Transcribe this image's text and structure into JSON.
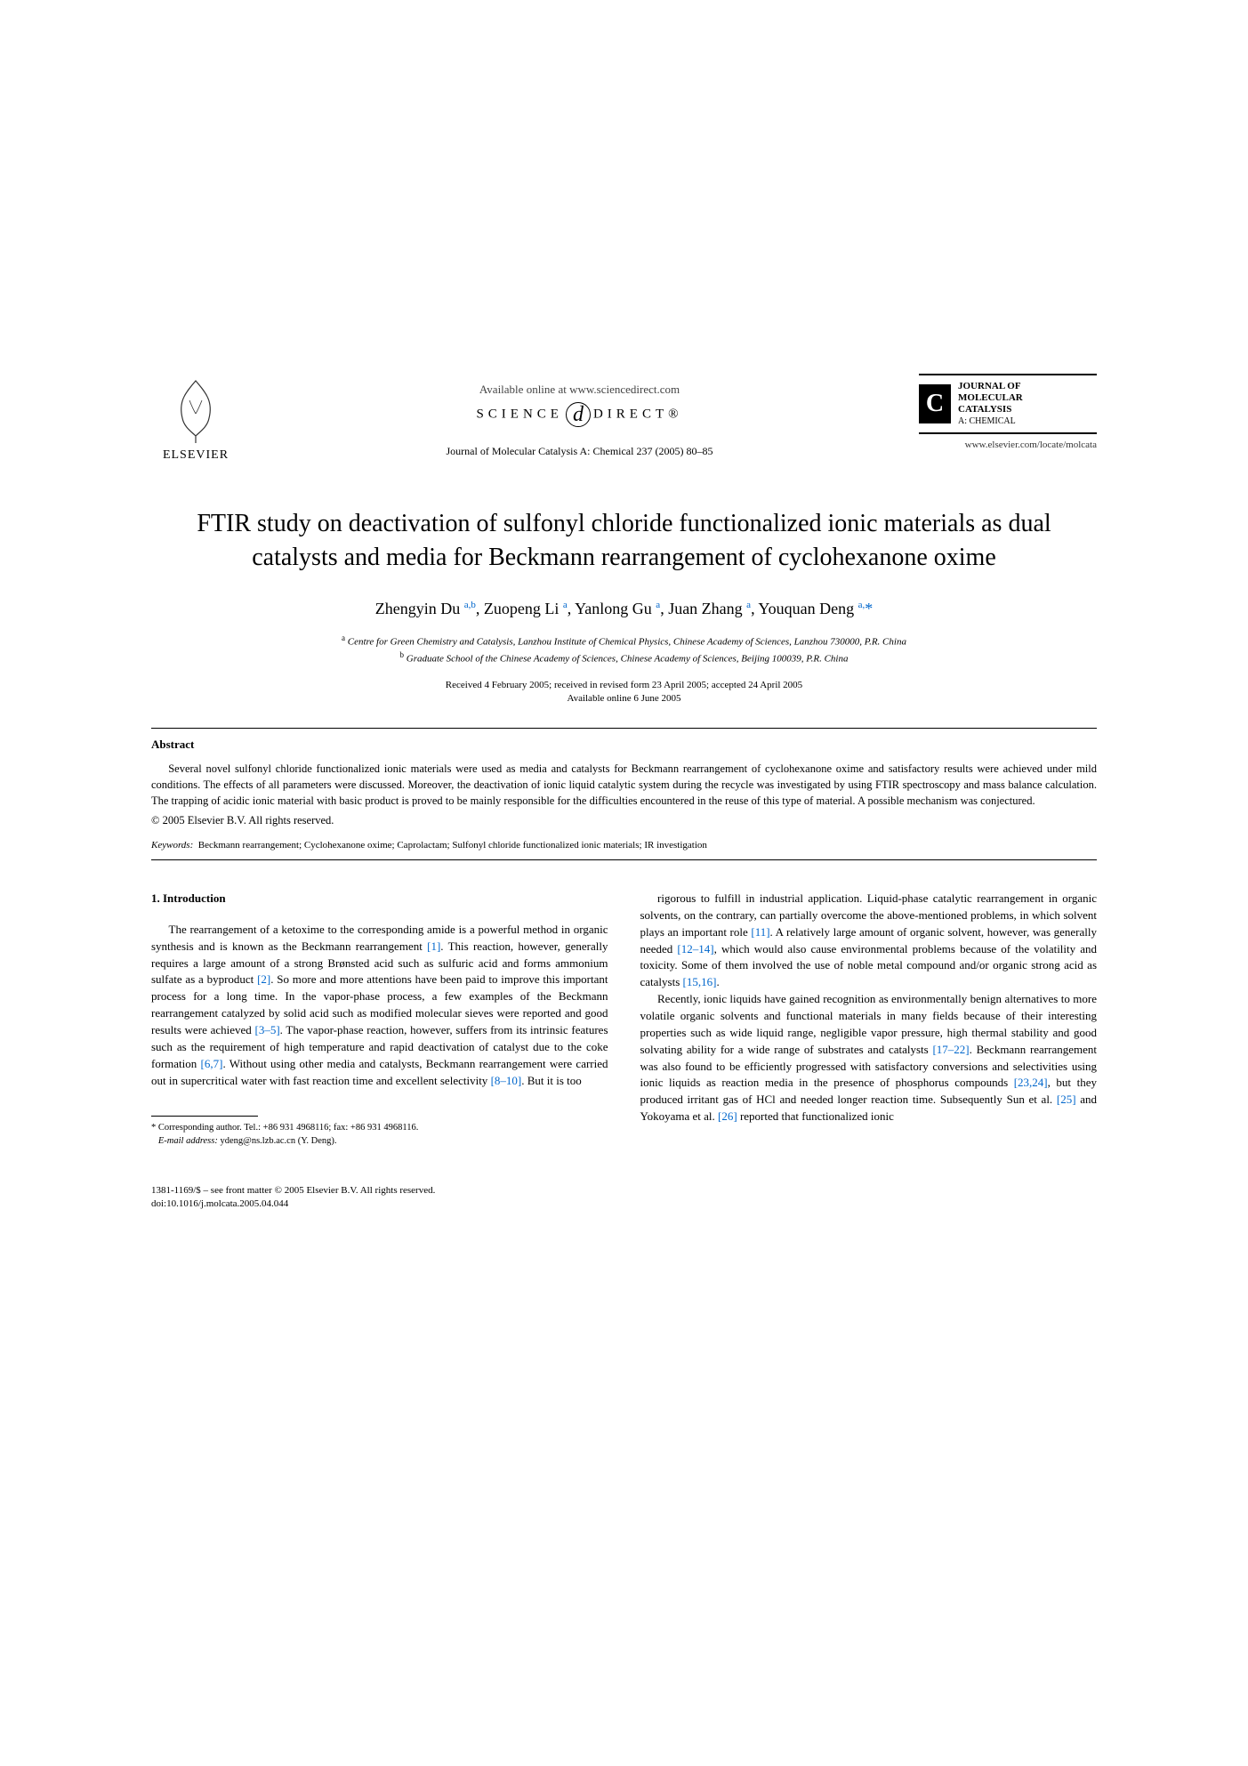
{
  "header": {
    "elsevier_label": "ELSEVIER",
    "available_online": "Available online at www.sciencedirect.com",
    "sciencedirect_left": "SCIENCE",
    "sciencedirect_right": "DIRECT®",
    "journal_ref": "Journal of Molecular Catalysis A: Chemical 237 (2005) 80–85",
    "journal_name_l1": "JOURNAL OF",
    "journal_name_l2": "MOLECULAR",
    "journal_name_l3": "CATALYSIS",
    "journal_name_sub": "A: CHEMICAL",
    "journal_url": "www.elsevier.com/locate/molcata"
  },
  "title": "FTIR study on deactivation of sulfonyl chloride functionalized ionic materials as dual catalysts and media for Beckmann rearrangement of cyclohexanone oxime",
  "authors_html": "Zhengyin Du <sup>a,b</sup>, Zuopeng Li <sup>a</sup>, Yanlong Gu <sup>a</sup>, Juan Zhang <sup>a</sup>, Youquan Deng <sup>a,</sup><span class='star'>*</span>",
  "affiliations": {
    "a": "Centre for Green Chemistry and Catalysis, Lanzhou Institute of Chemical Physics, Chinese Academy of Sciences, Lanzhou 730000, P.R. China",
    "b": "Graduate School of the Chinese Academy of Sciences, Chinese Academy of Sciences, Beijing 100039, P.R. China"
  },
  "dates": {
    "line1": "Received 4 February 2005; received in revised form 23 April 2005; accepted 24 April 2005",
    "line2": "Available online 6 June 2005"
  },
  "abstract": {
    "heading": "Abstract",
    "text": "Several novel sulfonyl chloride functionalized ionic materials were used as media and catalysts for Beckmann rearrangement of cyclohexanone oxime and satisfactory results were achieved under mild conditions. The effects of all parameters were discussed. Moreover, the deactivation of ionic liquid catalytic system during the recycle was investigated by using FTIR spectroscopy and mass balance calculation. The trapping of acidic ionic material with basic product is proved to be mainly responsible for the difficulties encountered in the reuse of this type of material. A possible mechanism was conjectured.",
    "copyright": "© 2005 Elsevier B.V. All rights reserved."
  },
  "keywords": {
    "label": "Keywords:",
    "text": "Beckmann rearrangement; Cyclohexanone oxime; Caprolactam; Sulfonyl chloride functionalized ionic materials; IR investigation"
  },
  "section1": {
    "heading": "1. Introduction",
    "col1_p1": "The rearrangement of a ketoxime to the corresponding amide is a powerful method in organic synthesis and is known as the Beckmann rearrangement [1]. This reaction, however, generally requires a large amount of a strong Brønsted acid such as sulfuric acid and forms ammonium sulfate as a byproduct [2]. So more and more attentions have been paid to improve this important process for a long time. In the vapor-phase process, a few examples of the Beckmann rearrangement catalyzed by solid acid such as modified molecular sieves were reported and good results were achieved [3–5]. The vapor-phase reaction, however, suffers from its intrinsic features such as the requirement of high temperature and rapid deactivation of catalyst due to the coke formation [6,7]. Without using other media and catalysts, Beckmann rearrangement were carried out in supercritical water with fast reaction time and excellent selectivity [8–10]. But it is too",
    "col2_p1": "rigorous to fulfill in industrial application. Liquid-phase catalytic rearrangement in organic solvents, on the contrary, can partially overcome the above-mentioned problems, in which solvent plays an important role [11]. A relatively large amount of organic solvent, however, was generally needed [12–14], which would also cause environmental problems because of the volatility and toxicity. Some of them involved the use of noble metal compound and/or organic strong acid as catalysts [15,16].",
    "col2_p2": "Recently, ionic liquids have gained recognition as environmentally benign alternatives to more volatile organic solvents and functional materials in many fields because of their interesting properties such as wide liquid range, negligible vapor pressure, high thermal stability and good solvating ability for a wide range of substrates and catalysts [17–22]. Beckmann rearrangement was also found to be efficiently progressed with satisfactory conversions and selectivities using ionic liquids as reaction media in the presence of phosphorus compounds [23,24], but they produced irritant gas of HCl and needed longer reaction time. Subsequently Sun et al. [25] and Yokoyama et al. [26] reported that functionalized ionic"
  },
  "footnote": {
    "corresponding": "Corresponding author. Tel.: +86 931 4968116; fax: +86 931 4968116.",
    "email_label": "E-mail address:",
    "email": "ydeng@ns.lzb.ac.cn (Y. Deng)."
  },
  "footer": {
    "line1": "1381-1169/$ – see front matter © 2005 Elsevier B.V. All rights reserved.",
    "line2": "doi:10.1016/j.molcata.2005.04.044"
  },
  "refs": {
    "r1": "[1]",
    "r2": "[2]",
    "r3_5": "[3–5]",
    "r6_7": "[6,7]",
    "r8_10": "[8–10]",
    "r11": "[11]",
    "r12_14": "[12–14]",
    "r15_16": "[15,16]",
    "r17_22": "[17–22]",
    "r23_24": "[23,24]",
    "r25": "[25]",
    "r26": "[26]"
  }
}
